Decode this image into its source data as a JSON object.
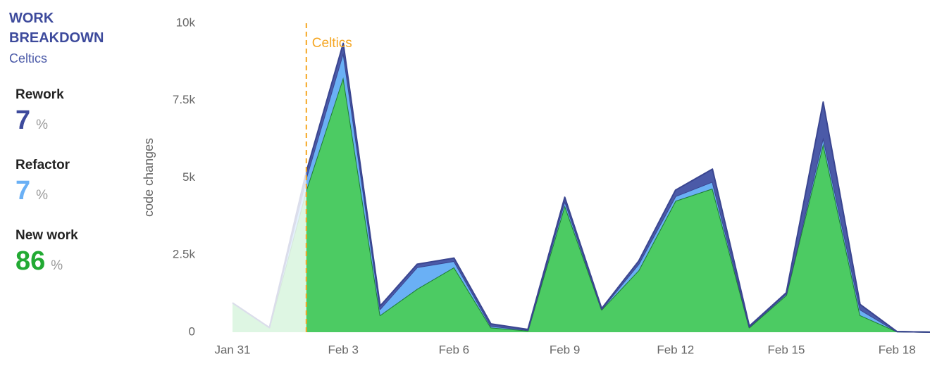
{
  "sidebar": {
    "title": "WORK BREAKDOWN",
    "subtitle": "Celtics",
    "stats": [
      {
        "label": "Rework",
        "value": 7,
        "unit": "%",
        "color": "#3d4a9c"
      },
      {
        "label": "Refactor",
        "value": 7,
        "unit": "%",
        "color": "#6ab0f5"
      },
      {
        "label": "New work",
        "value": 86,
        "unit": "%",
        "color": "#22aa33"
      }
    ]
  },
  "chart_data": {
    "type": "stacked_area",
    "y_label": "code changes",
    "categories": [
      "Jan 31",
      null,
      null,
      "Feb 3",
      null,
      null,
      "Feb 6",
      null,
      null,
      "Feb 9",
      null,
      null,
      "Feb 12",
      null,
      null,
      "Feb 15",
      null,
      null,
      "Feb 18",
      null
    ],
    "series": [
      {
        "name": "New work",
        "color": "#4ccb63",
        "values": [
          950,
          150,
          4600,
          8250,
          550,
          1400,
          2100,
          150,
          50,
          4100,
          730,
          2000,
          4250,
          4650,
          150,
          1200,
          6100,
          550,
          20,
          0
        ]
      },
      {
        "name": "Refactor",
        "color": "#6ab0f5",
        "values": [
          0,
          0,
          400,
          800,
          200,
          700,
          200,
          50,
          20,
          150,
          20,
          200,
          150,
          220,
          25,
          40,
          200,
          180,
          0,
          0
        ]
      },
      {
        "name": "Rework",
        "color": "#4b5aa8",
        "values": [
          0,
          0,
          200,
          300,
          100,
          100,
          100,
          70,
          20,
          120,
          20,
          100,
          200,
          410,
          25,
          40,
          1150,
          170,
          0,
          0
        ]
      }
    ],
    "annotation": {
      "text": "Celtics",
      "index": 2,
      "color": "#f5a623"
    },
    "ylim": [
      0,
      10000
    ],
    "yticks": [
      0,
      {
        "value": 2500,
        "label": "2.5k"
      },
      {
        "value": 5000,
        "label": "5k"
      },
      {
        "value": 7500,
        "label": "7.5k"
      },
      {
        "value": 10000,
        "label": "10k"
      }
    ],
    "grid": false
  }
}
